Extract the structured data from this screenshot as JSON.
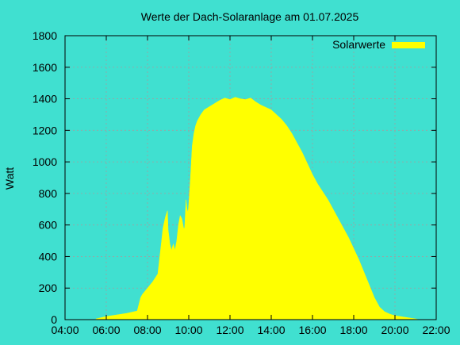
{
  "chart_data": {
    "type": "area",
    "title": "Werte der Dach-Solaranlage am 01.07.2025",
    "xlabel": "",
    "ylabel": "Watt",
    "xlim": [
      "04:00",
      "22:00"
    ],
    "ylim": [
      0,
      1800
    ],
    "xticks": [
      "04:00",
      "06:00",
      "08:00",
      "10:00",
      "12:00",
      "14:00",
      "16:00",
      "18:00",
      "20:00",
      "22:00"
    ],
    "yticks": [
      "0",
      "200",
      "400",
      "600",
      "800",
      "1000",
      "1200",
      "1400",
      "1600",
      "1800"
    ],
    "grid": true,
    "legend_position": "top-right",
    "colors": {
      "background": "#40e0d0",
      "fill": "#ffff00",
      "grid": "#a0a0a0",
      "axis": "#000000"
    },
    "series": [
      {
        "name": "Solarwerte",
        "color": "#ffff00",
        "x": [
          "05:30",
          "06:00",
          "06:30",
          "07:00",
          "07:30",
          "07:40",
          "07:45",
          "08:00",
          "08:15",
          "08:30",
          "08:40",
          "08:45",
          "08:52",
          "08:58",
          "09:00",
          "09:05",
          "09:10",
          "09:15",
          "09:20",
          "09:25",
          "09:30",
          "09:35",
          "09:40",
          "09:45",
          "09:48",
          "09:52",
          "09:55",
          "09:58",
          "10:00",
          "10:05",
          "10:10",
          "10:15",
          "10:20",
          "10:25",
          "10:30",
          "10:35",
          "10:45",
          "11:00",
          "11:15",
          "11:30",
          "11:45",
          "12:00",
          "12:15",
          "12:30",
          "12:45",
          "13:00",
          "13:15",
          "13:30",
          "13:45",
          "14:00",
          "14:15",
          "14:30",
          "14:45",
          "15:00",
          "15:15",
          "15:30",
          "15:45",
          "16:00",
          "16:15",
          "16:30",
          "16:45",
          "17:00",
          "17:15",
          "17:30",
          "17:45",
          "18:00",
          "18:15",
          "18:30",
          "18:45",
          "19:00",
          "19:15",
          "19:30",
          "19:45",
          "20:00",
          "20:15",
          "20:30",
          "20:45",
          "21:00",
          "21:10"
        ],
        "values": [
          5,
          20,
          30,
          40,
          55,
          140,
          160,
          200,
          240,
          290,
          480,
          580,
          650,
          690,
          570,
          480,
          440,
          480,
          440,
          500,
          600,
          660,
          640,
          580,
          580,
          760,
          700,
          680,
          730,
          900,
          1100,
          1180,
          1230,
          1260,
          1280,
          1300,
          1330,
          1350,
          1370,
          1390,
          1405,
          1395,
          1410,
          1400,
          1395,
          1405,
          1380,
          1360,
          1345,
          1330,
          1300,
          1270,
          1230,
          1180,
          1120,
          1060,
          990,
          920,
          860,
          810,
          760,
          700,
          640,
          580,
          520,
          450,
          380,
          300,
          220,
          140,
          80,
          50,
          35,
          25,
          20,
          15,
          10,
          5,
          0
        ]
      }
    ]
  }
}
